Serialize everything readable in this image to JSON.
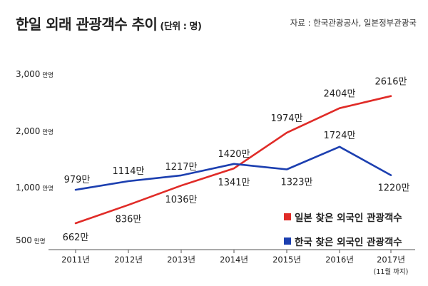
{
  "header": {
    "title": "한일 외래 관광객수 추이",
    "unit": "(단위 : 명)",
    "source": "자료 : 한국관광공사, 일본정부관광국"
  },
  "chart_data": {
    "type": "line",
    "x": [
      "2011년",
      "2012년",
      "2013년",
      "2014년",
      "2015년",
      "2016년",
      "2017년"
    ],
    "x_sublabels": [
      "",
      "",
      "",
      "",
      "",
      "",
      "(11월 까지)"
    ],
    "yticks": [
      {
        "value": 500,
        "label": "500",
        "suffix": "만명"
      },
      {
        "value": 1000,
        "label": "1,000",
        "suffix": "만명"
      },
      {
        "value": 2000,
        "label": "2,000",
        "suffix": "만명"
      },
      {
        "value": 3000,
        "label": "3,000",
        "suffix": "만명"
      }
    ],
    "ylim": [
      500,
      3000
    ],
    "series": [
      {
        "name": "일본 찾은 외국인 관광객수",
        "color": "#e02b27",
        "values": [
          662,
          836,
          1036,
          1341,
          1974,
          2404,
          2616
        ],
        "labels": [
          "662만",
          "836만",
          "1036만",
          "1341만",
          "1974만",
          "2404만",
          "2616만"
        ]
      },
      {
        "name": "한국 찾은 외국인 관광객수",
        "color": "#1c3fb0",
        "values": [
          979,
          1114,
          1217,
          1420,
          1323,
          1724,
          1220
        ],
        "labels": [
          "979만",
          "1114만",
          "1217만",
          "1420만",
          "1323만",
          "1724만",
          "1220만"
        ]
      }
    ],
    "grid": false,
    "legend": "bottom-right"
  }
}
